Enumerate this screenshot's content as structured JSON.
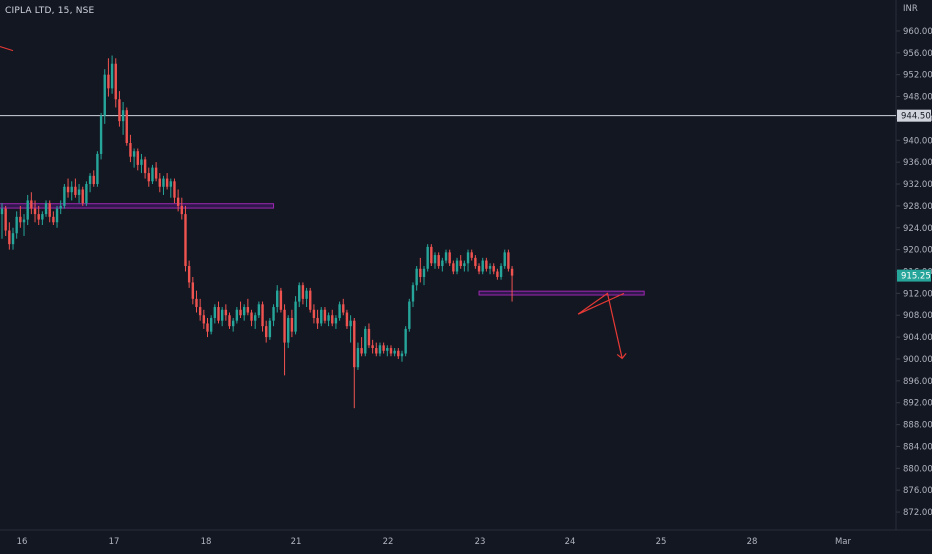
{
  "header": {
    "title": "CIPLA LTD, 15, NSE"
  },
  "currency": "INR",
  "colors": {
    "bg": "#131722",
    "up": "#26a69a",
    "down": "#ef5350",
    "axis_text": "#b2b5be",
    "grid": "#1c2030",
    "hline": "#d1d4dc",
    "zone_fill": "#6a1b9a",
    "zone_stroke": "#9c27b0",
    "last_bg": "#26a69a",
    "arrow": "#e53935"
  },
  "chart_data": {
    "type": "candlestick",
    "title": "CIPLA LTD, 15, NSE",
    "ylim": [
      870,
      962
    ],
    "y_ticks": [
      "960.00",
      "956.00",
      "952.00",
      "948.00",
      "944.00",
      "940.00",
      "936.00",
      "932.00",
      "928.00",
      "924.00",
      "920.00",
      "916.00",
      "912.00",
      "908.00",
      "904.00",
      "900.00",
      "896.00",
      "892.00",
      "888.00",
      "884.00",
      "880.00",
      "876.00",
      "872.00"
    ],
    "x_ticks": [
      "16",
      "17",
      "18",
      "21",
      "22",
      "23",
      "24",
      "25",
      "28",
      "Mar"
    ],
    "x_range_index": [
      0,
      230
    ],
    "candles": [
      {
        "o": 926.5,
        "h": 928.5,
        "l": 922,
        "c": 927.5
      },
      {
        "o": 927.5,
        "h": 928,
        "l": 922.5,
        "c": 923.5
      },
      {
        "o": 923.5,
        "h": 925,
        "l": 920,
        "c": 921
      },
      {
        "o": 921,
        "h": 924,
        "l": 920,
        "c": 923
      },
      {
        "o": 923,
        "h": 927,
        "l": 922,
        "c": 926
      },
      {
        "o": 926,
        "h": 928,
        "l": 924,
        "c": 925
      },
      {
        "o": 925,
        "h": 926.5,
        "l": 922.5,
        "c": 925.5
      },
      {
        "o": 925.5,
        "h": 930,
        "l": 924.5,
        "c": 929
      },
      {
        "o": 929,
        "h": 930.5,
        "l": 926.5,
        "c": 927.5
      },
      {
        "o": 927.5,
        "h": 929,
        "l": 925,
        "c": 926.5
      },
      {
        "o": 926.5,
        "h": 928,
        "l": 924.5,
        "c": 925.5
      },
      {
        "o": 925.5,
        "h": 927,
        "l": 924.5,
        "c": 926.5
      },
      {
        "o": 926.5,
        "h": 929,
        "l": 926,
        "c": 928.5
      },
      {
        "o": 928.5,
        "h": 929,
        "l": 925,
        "c": 926
      },
      {
        "o": 926,
        "h": 927,
        "l": 924.5,
        "c": 925
      },
      {
        "o": 925,
        "h": 928,
        "l": 924,
        "c": 927.5
      },
      {
        "o": 927.5,
        "h": 929,
        "l": 926.5,
        "c": 928
      },
      {
        "o": 928,
        "h": 932,
        "l": 927.5,
        "c": 931.5
      },
      {
        "o": 931.5,
        "h": 933,
        "l": 929.5,
        "c": 930.5
      },
      {
        "o": 930.5,
        "h": 932.5,
        "l": 929,
        "c": 931.5
      },
      {
        "o": 931.5,
        "h": 933,
        "l": 929.5,
        "c": 930
      },
      {
        "o": 930,
        "h": 932,
        "l": 928.5,
        "c": 931
      },
      {
        "o": 931,
        "h": 931.5,
        "l": 928,
        "c": 928.5
      },
      {
        "o": 928.5,
        "h": 932.5,
        "l": 928,
        "c": 932
      },
      {
        "o": 932,
        "h": 934,
        "l": 930.5,
        "c": 933.5
      },
      {
        "o": 933.5,
        "h": 934.5,
        "l": 931.5,
        "c": 932
      },
      {
        "o": 932,
        "h": 938,
        "l": 931.5,
        "c": 937.5
      },
      {
        "o": 937.5,
        "h": 945,
        "l": 936.5,
        "c": 944.5
      },
      {
        "o": 944.5,
        "h": 953,
        "l": 943,
        "c": 952
      },
      {
        "o": 952,
        "h": 955,
        "l": 948,
        "c": 949.5
      },
      {
        "o": 949.5,
        "h": 955.5,
        "l": 948.5,
        "c": 954
      },
      {
        "o": 954,
        "h": 955,
        "l": 946,
        "c": 947.5
      },
      {
        "o": 947.5,
        "h": 949,
        "l": 942.5,
        "c": 943.5
      },
      {
        "o": 943.5,
        "h": 947,
        "l": 941,
        "c": 945.5
      },
      {
        "o": 945.5,
        "h": 946,
        "l": 939,
        "c": 939.5
      },
      {
        "o": 939.5,
        "h": 941,
        "l": 936,
        "c": 937
      },
      {
        "o": 937,
        "h": 938.5,
        "l": 935,
        "c": 938
      },
      {
        "o": 938,
        "h": 938.5,
        "l": 934.5,
        "c": 935.5
      },
      {
        "o": 935.5,
        "h": 937.5,
        "l": 934,
        "c": 936.5
      },
      {
        "o": 936.5,
        "h": 937,
        "l": 933,
        "c": 934
      },
      {
        "o": 934,
        "h": 935,
        "l": 931.5,
        "c": 932.5
      },
      {
        "o": 932.5,
        "h": 935.5,
        "l": 932,
        "c": 935
      },
      {
        "o": 935,
        "h": 936,
        "l": 932.5,
        "c": 933
      },
      {
        "o": 933,
        "h": 934,
        "l": 930.5,
        "c": 931.5
      },
      {
        "o": 931.5,
        "h": 933.5,
        "l": 930,
        "c": 933
      },
      {
        "o": 933,
        "h": 934,
        "l": 931,
        "c": 931.5
      },
      {
        "o": 931.5,
        "h": 933,
        "l": 929.5,
        "c": 932.5
      },
      {
        "o": 932.5,
        "h": 933,
        "l": 928.5,
        "c": 929.5
      },
      {
        "o": 929.5,
        "h": 931,
        "l": 927,
        "c": 928
      },
      {
        "o": 928,
        "h": 929.5,
        "l": 925.5,
        "c": 926.5
      },
      {
        "o": 926.5,
        "h": 928,
        "l": 916,
        "c": 917
      },
      {
        "o": 917,
        "h": 918,
        "l": 913,
        "c": 914
      },
      {
        "o": 914,
        "h": 915,
        "l": 910,
        "c": 911
      },
      {
        "o": 911,
        "h": 912.5,
        "l": 908.5,
        "c": 909.5
      },
      {
        "o": 909.5,
        "h": 911,
        "l": 907,
        "c": 908
      },
      {
        "o": 908,
        "h": 909,
        "l": 905.5,
        "c": 906.5
      },
      {
        "o": 906.5,
        "h": 907.5,
        "l": 904,
        "c": 905
      },
      {
        "o": 905,
        "h": 908,
        "l": 904.5,
        "c": 907.5
      },
      {
        "o": 907.5,
        "h": 910,
        "l": 906.5,
        "c": 909.5
      },
      {
        "o": 909.5,
        "h": 910.5,
        "l": 906.5,
        "c": 907
      },
      {
        "o": 907,
        "h": 909.5,
        "l": 906,
        "c": 909
      },
      {
        "o": 909,
        "h": 910,
        "l": 907,
        "c": 908
      },
      {
        "o": 908,
        "h": 908.5,
        "l": 905.5,
        "c": 906
      },
      {
        "o": 906,
        "h": 907.5,
        "l": 905,
        "c": 907
      },
      {
        "o": 907,
        "h": 909.5,
        "l": 906.5,
        "c": 909
      },
      {
        "o": 909,
        "h": 910.5,
        "l": 907.5,
        "c": 908
      },
      {
        "o": 908,
        "h": 910,
        "l": 907,
        "c": 909.5
      },
      {
        "o": 909.5,
        "h": 911,
        "l": 908,
        "c": 908.5
      },
      {
        "o": 908.5,
        "h": 909,
        "l": 906,
        "c": 907
      },
      {
        "o": 907,
        "h": 908.5,
        "l": 905.5,
        "c": 908
      },
      {
        "o": 908,
        "h": 910.5,
        "l": 907.5,
        "c": 910
      },
      {
        "o": 910,
        "h": 910.5,
        "l": 905,
        "c": 906
      },
      {
        "o": 906,
        "h": 907,
        "l": 903,
        "c": 904
      },
      {
        "o": 904,
        "h": 907.5,
        "l": 903.5,
        "c": 907
      },
      {
        "o": 907,
        "h": 910,
        "l": 906,
        "c": 909.5
      },
      {
        "o": 909.5,
        "h": 913.5,
        "l": 908.5,
        "c": 912.5
      },
      {
        "o": 912.5,
        "h": 913,
        "l": 908.5,
        "c": 909
      },
      {
        "o": 909,
        "h": 910,
        "l": 897,
        "c": 903
      },
      {
        "o": 903,
        "h": 908,
        "l": 902,
        "c": 907.5
      },
      {
        "o": 907.5,
        "h": 909,
        "l": 904,
        "c": 905
      },
      {
        "o": 905,
        "h": 911.5,
        "l": 904.5,
        "c": 910.5
      },
      {
        "o": 910.5,
        "h": 914,
        "l": 909.5,
        "c": 913.5
      },
      {
        "o": 913.5,
        "h": 914,
        "l": 910,
        "c": 911
      },
      {
        "o": 911,
        "h": 913,
        "l": 909.5,
        "c": 912.5
      },
      {
        "o": 912.5,
        "h": 913,
        "l": 908.5,
        "c": 909
      },
      {
        "o": 909,
        "h": 910,
        "l": 906.5,
        "c": 907.5
      },
      {
        "o": 907.5,
        "h": 909,
        "l": 905.5,
        "c": 906.5
      },
      {
        "o": 906.5,
        "h": 909.5,
        "l": 906,
        "c": 909
      },
      {
        "o": 909,
        "h": 909.5,
        "l": 906.5,
        "c": 907
      },
      {
        "o": 907,
        "h": 908.5,
        "l": 906,
        "c": 908
      },
      {
        "o": 908,
        "h": 909,
        "l": 906,
        "c": 906.5
      },
      {
        "o": 906.5,
        "h": 908,
        "l": 905.5,
        "c": 907.5
      },
      {
        "o": 907.5,
        "h": 910.5,
        "l": 907,
        "c": 910
      },
      {
        "o": 910,
        "h": 911,
        "l": 908,
        "c": 908.5
      },
      {
        "o": 908.5,
        "h": 909,
        "l": 905.5,
        "c": 906
      },
      {
        "o": 906,
        "h": 908,
        "l": 903,
        "c": 907
      },
      {
        "o": 907,
        "h": 907.5,
        "l": 891,
        "c": 898.5
      },
      {
        "o": 898.5,
        "h": 903,
        "l": 898,
        "c": 902
      },
      {
        "o": 902,
        "h": 904,
        "l": 900.5,
        "c": 901
      },
      {
        "o": 901,
        "h": 906,
        "l": 900.5,
        "c": 905.5
      },
      {
        "o": 905.5,
        "h": 906.5,
        "l": 902,
        "c": 902.5
      },
      {
        "o": 902.5,
        "h": 903.5,
        "l": 901,
        "c": 902
      },
      {
        "o": 902,
        "h": 903,
        "l": 900.5,
        "c": 901
      },
      {
        "o": 901,
        "h": 903,
        "l": 900.5,
        "c": 902.5
      },
      {
        "o": 902.5,
        "h": 903,
        "l": 901,
        "c": 901.5
      },
      {
        "o": 901.5,
        "h": 902.5,
        "l": 900.5,
        "c": 902
      },
      {
        "o": 902,
        "h": 902.5,
        "l": 900.5,
        "c": 901
      },
      {
        "o": 901,
        "h": 902,
        "l": 900.5,
        "c": 901.5
      },
      {
        "o": 901.5,
        "h": 902,
        "l": 900,
        "c": 900.5
      },
      {
        "o": 900.5,
        "h": 901.5,
        "l": 899.5,
        "c": 901
      },
      {
        "o": 901,
        "h": 906,
        "l": 900.5,
        "c": 905.5
      },
      {
        "o": 905.5,
        "h": 911,
        "l": 905,
        "c": 910.5
      },
      {
        "o": 910.5,
        "h": 914,
        "l": 909.5,
        "c": 913.5
      },
      {
        "o": 913.5,
        "h": 917,
        "l": 912.5,
        "c": 916.5
      },
      {
        "o": 916.5,
        "h": 918.5,
        "l": 914,
        "c": 915
      },
      {
        "o": 915,
        "h": 917,
        "l": 913.5,
        "c": 916.5
      },
      {
        "o": 916.5,
        "h": 921,
        "l": 916,
        "c": 920.5
      },
      {
        "o": 920.5,
        "h": 921,
        "l": 917,
        "c": 917.5
      },
      {
        "o": 917.5,
        "h": 919.5,
        "l": 916.5,
        "c": 919
      },
      {
        "o": 919,
        "h": 919.5,
        "l": 916.5,
        "c": 917
      },
      {
        "o": 917,
        "h": 918.5,
        "l": 916,
        "c": 918
      },
      {
        "o": 918,
        "h": 920,
        "l": 917.5,
        "c": 919.5
      },
      {
        "o": 919.5,
        "h": 920,
        "l": 917,
        "c": 917.5
      },
      {
        "o": 917.5,
        "h": 918,
        "l": 915.5,
        "c": 916
      },
      {
        "o": 916,
        "h": 918.5,
        "l": 915.5,
        "c": 918
      },
      {
        "o": 918,
        "h": 919,
        "l": 916.5,
        "c": 917
      },
      {
        "o": 917,
        "h": 918,
        "l": 916,
        "c": 917.5
      },
      {
        "o": 917.5,
        "h": 920,
        "l": 916,
        "c": 919.5
      },
      {
        "o": 919.5,
        "h": 920,
        "l": 918,
        "c": 918.5
      },
      {
        "o": 918.5,
        "h": 919,
        "l": 916.5,
        "c": 917
      },
      {
        "o": 917,
        "h": 917.5,
        "l": 915.5,
        "c": 916
      },
      {
        "o": 916,
        "h": 918.5,
        "l": 915.5,
        "c": 918
      },
      {
        "o": 918,
        "h": 918.5,
        "l": 916,
        "c": 916.5
      },
      {
        "o": 916.5,
        "h": 917.5,
        "l": 915.5,
        "c": 917
      },
      {
        "o": 917,
        "h": 917.5,
        "l": 915.5,
        "c": 916
      },
      {
        "o": 916,
        "h": 916.5,
        "l": 914.5,
        "c": 915
      },
      {
        "o": 915,
        "h": 917.5,
        "l": 914.5,
        "c": 917
      },
      {
        "o": 917,
        "h": 920,
        "l": 916.5,
        "c": 919.5
      },
      {
        "o": 919.5,
        "h": 920,
        "l": 916,
        "c": 916.5
      },
      {
        "o": 916.5,
        "h": 917,
        "l": 910.5,
        "c": 915.25
      }
    ],
    "horizontal_line": 944.5,
    "last_price": "915.25",
    "marker_label": "944.50",
    "zones": [
      {
        "x_start": -1,
        "x_end": 74,
        "y_top": 928.4,
        "y_bottom": 927.6
      },
      {
        "x_start": 130,
        "x_end": 175,
        "y_top": 912.4,
        "y_bottom": 911.7
      }
    ],
    "arrow_path": [
      [
        157,
        908.2
      ],
      [
        165,
        912
      ],
      [
        169,
        900.1
      ]
    ],
    "annotation_stub": [
      [
        -1.8,
        957.4
      ],
      [
        3,
        956.4
      ]
    ]
  }
}
